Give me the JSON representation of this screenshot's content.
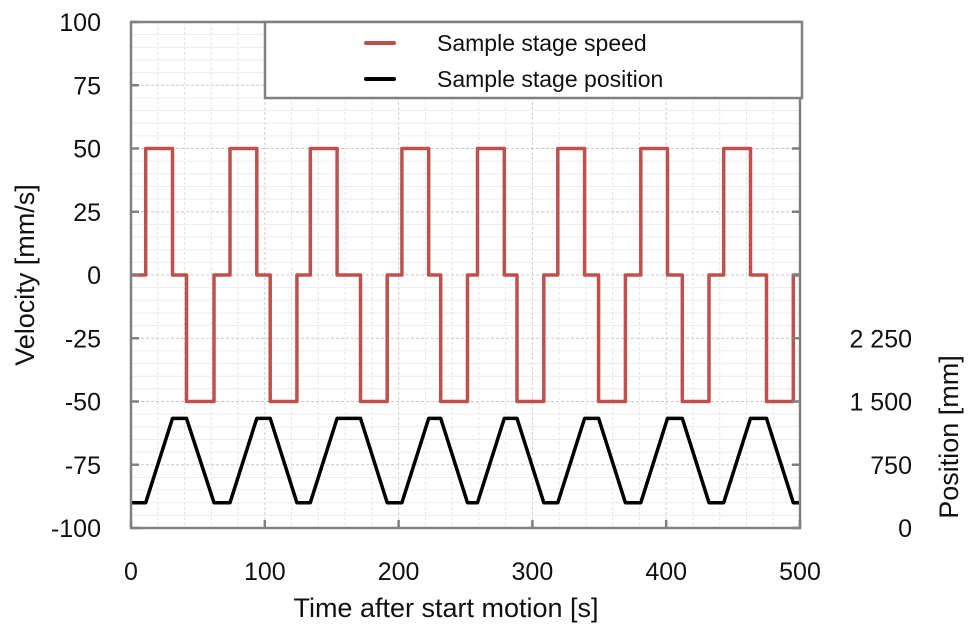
{
  "chart_data": {
    "type": "line",
    "title": "",
    "xlabel": "Time after start motion [s]",
    "ylabel": "Velocity [mm/s]",
    "y2label": "Position [mm]",
    "xlim": [
      0,
      500
    ],
    "ylim": [
      -100,
      100
    ],
    "y2lim": [
      0,
      1500
    ],
    "xticks": [
      0,
      100,
      200,
      300,
      400,
      500
    ],
    "yticks": [
      100,
      75,
      50,
      25,
      0,
      -25,
      -50,
      -75,
      -100
    ],
    "y2ticks": [
      {
        "value": 0,
        "label": "0"
      },
      {
        "value": 750,
        "label": "750"
      },
      {
        "value": 1500,
        "label": "1 500"
      },
      {
        "value": 2250,
        "label": "2 250"
      }
    ],
    "grid": true,
    "legend_position": "top-right",
    "series": [
      {
        "name": "Sample stage speed",
        "axis": "left",
        "color": "#c0504d",
        "points": [
          [
            0,
            0
          ],
          [
            11,
            0
          ],
          [
            11,
            50
          ],
          [
            31,
            50
          ],
          [
            31,
            0
          ],
          [
            41.5,
            0
          ],
          [
            41.5,
            -50
          ],
          [
            62,
            -50
          ],
          [
            62,
            0
          ],
          [
            74,
            0
          ],
          [
            74,
            50
          ],
          [
            94,
            50
          ],
          [
            94,
            0
          ],
          [
            104,
            0
          ],
          [
            104,
            -50
          ],
          [
            124,
            -50
          ],
          [
            124,
            0
          ],
          [
            134,
            0
          ],
          [
            134,
            50
          ],
          [
            154,
            50
          ],
          [
            154,
            0
          ],
          [
            171.5,
            0
          ],
          [
            171.5,
            -50
          ],
          [
            191.5,
            -50
          ],
          [
            191.5,
            0
          ],
          [
            202.5,
            0
          ],
          [
            202.5,
            50
          ],
          [
            222.5,
            50
          ],
          [
            222.5,
            0
          ],
          [
            231.5,
            0
          ],
          [
            231.5,
            -50
          ],
          [
            251.5,
            -50
          ],
          [
            251.5,
            0
          ],
          [
            259,
            0
          ],
          [
            259,
            50
          ],
          [
            279,
            50
          ],
          [
            279,
            0
          ],
          [
            288.5,
            0
          ],
          [
            288.5,
            -50
          ],
          [
            308.5,
            -50
          ],
          [
            308.5,
            0
          ],
          [
            319,
            0
          ],
          [
            319,
            50
          ],
          [
            339,
            50
          ],
          [
            339,
            0
          ],
          [
            349.5,
            0
          ],
          [
            349.5,
            -50
          ],
          [
            369.5,
            -50
          ],
          [
            369.5,
            0
          ],
          [
            381,
            0
          ],
          [
            381,
            50
          ],
          [
            401,
            50
          ],
          [
            401,
            0
          ],
          [
            412,
            0
          ],
          [
            412,
            -50
          ],
          [
            432,
            -50
          ],
          [
            432,
            0
          ],
          [
            443,
            0
          ],
          [
            443,
            50
          ],
          [
            463,
            50
          ],
          [
            463,
            0
          ],
          [
            475,
            0
          ],
          [
            475,
            -50
          ],
          [
            495,
            -50
          ],
          [
            495,
            0
          ],
          [
            500,
            0
          ]
        ]
      },
      {
        "name": "Sample stage position",
        "axis": "right",
        "color": "#000000",
        "points": [
          [
            0,
            300
          ],
          [
            11,
            300
          ],
          [
            31,
            1300
          ],
          [
            41.5,
            1300
          ],
          [
            62,
            300
          ],
          [
            74,
            300
          ],
          [
            94,
            1300
          ],
          [
            104,
            1300
          ],
          [
            124,
            300
          ],
          [
            134,
            300
          ],
          [
            154,
            1300
          ],
          [
            171.5,
            1300
          ],
          [
            191.5,
            300
          ],
          [
            202.5,
            300
          ],
          [
            222.5,
            1300
          ],
          [
            231.5,
            1300
          ],
          [
            251.5,
            300
          ],
          [
            259,
            300
          ],
          [
            279,
            1300
          ],
          [
            288.5,
            1300
          ],
          [
            308.5,
            300
          ],
          [
            319,
            300
          ],
          [
            339,
            1300
          ],
          [
            349.5,
            1300
          ],
          [
            369.5,
            300
          ],
          [
            381,
            300
          ],
          [
            401,
            1300
          ],
          [
            412,
            1300
          ],
          [
            432,
            300
          ],
          [
            443,
            300
          ],
          [
            463,
            1300
          ],
          [
            475,
            1300
          ],
          [
            495,
            300
          ],
          [
            500,
            300
          ]
        ]
      }
    ]
  }
}
